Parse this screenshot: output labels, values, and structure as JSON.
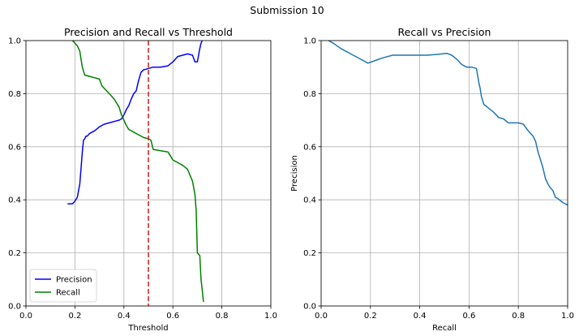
{
  "suptitle": "Submission 10",
  "chart_data": [
    {
      "type": "line",
      "title": "Precision and Recall vs Threshold",
      "xlabel": "Threshold",
      "ylabel": "",
      "xlim": [
        0.0,
        1.0
      ],
      "ylim": [
        0.0,
        1.0
      ],
      "xticks": [
        "0.0",
        "0.2",
        "0.4",
        "0.6",
        "0.8",
        "1.0"
      ],
      "yticks": [
        "0.0",
        "0.2",
        "0.4",
        "0.6",
        "0.8",
        "1.0"
      ],
      "grid": true,
      "legend": "lower-left",
      "threshold_line": {
        "x": 0.5,
        "color": "#d62728",
        "style": "dashed"
      },
      "series": [
        {
          "name": "Precision",
          "color": "#0000ff",
          "x": [
            0.17,
            0.19,
            0.2,
            0.21,
            0.22,
            0.225,
            0.23,
            0.235,
            0.24,
            0.245,
            0.25,
            0.26,
            0.28,
            0.3,
            0.32,
            0.34,
            0.36,
            0.38,
            0.39,
            0.4,
            0.41,
            0.42,
            0.43,
            0.44,
            0.45,
            0.46,
            0.47,
            0.48,
            0.49,
            0.5,
            0.52,
            0.55,
            0.58,
            0.6,
            0.62,
            0.64,
            0.66,
            0.68,
            0.69,
            0.7,
            0.71,
            0.715,
            0.72
          ],
          "y": [
            0.385,
            0.385,
            0.395,
            0.41,
            0.46,
            0.52,
            0.58,
            0.625,
            0.63,
            0.64,
            0.64,
            0.65,
            0.66,
            0.675,
            0.685,
            0.69,
            0.695,
            0.7,
            0.705,
            0.72,
            0.74,
            0.755,
            0.78,
            0.8,
            0.81,
            0.85,
            0.88,
            0.89,
            0.892,
            0.895,
            0.9,
            0.9,
            0.905,
            0.92,
            0.94,
            0.945,
            0.95,
            0.945,
            0.92,
            0.92,
            0.97,
            0.99,
            1.0
          ]
        },
        {
          "name": "Recall",
          "color": "#008000",
          "x": [
            0.19,
            0.2,
            0.21,
            0.22,
            0.23,
            0.24,
            0.26,
            0.28,
            0.3,
            0.31,
            0.32,
            0.34,
            0.36,
            0.38,
            0.39,
            0.4,
            0.41,
            0.42,
            0.44,
            0.46,
            0.48,
            0.5,
            0.51,
            0.52,
            0.55,
            0.58,
            0.59,
            0.6,
            0.62,
            0.64,
            0.66,
            0.68,
            0.69,
            0.695,
            0.7,
            0.705,
            0.71,
            0.715,
            0.72,
            0.725
          ],
          "y": [
            1.0,
            0.99,
            0.98,
            0.96,
            0.9,
            0.87,
            0.865,
            0.86,
            0.855,
            0.83,
            0.82,
            0.8,
            0.78,
            0.75,
            0.72,
            0.7,
            0.68,
            0.665,
            0.655,
            0.645,
            0.635,
            0.63,
            0.625,
            0.59,
            0.585,
            0.58,
            0.565,
            0.55,
            0.54,
            0.53,
            0.515,
            0.47,
            0.42,
            0.36,
            0.2,
            0.195,
            0.19,
            0.1,
            0.06,
            0.015
          ]
        }
      ]
    },
    {
      "type": "line",
      "title": "Recall vs Precision",
      "xlabel": "Recall",
      "ylabel": "Precision",
      "xlim": [
        0.0,
        1.0
      ],
      "ylim": [
        0.0,
        1.0
      ],
      "xticks": [
        "0.0",
        "0.2",
        "0.4",
        "0.6",
        "0.8",
        "1.0"
      ],
      "yticks": [
        "0.0",
        "0.2",
        "0.4",
        "0.6",
        "0.8",
        "1.0"
      ],
      "grid": true,
      "series": [
        {
          "color": "#1f77b4",
          "x": [
            0.03,
            0.05,
            0.08,
            0.12,
            0.16,
            0.19,
            0.22,
            0.25,
            0.29,
            0.33,
            0.38,
            0.43,
            0.47,
            0.51,
            0.53,
            0.55,
            0.57,
            0.59,
            0.61,
            0.63,
            0.64,
            0.645,
            0.65,
            0.66,
            0.68,
            0.7,
            0.72,
            0.74,
            0.76,
            0.78,
            0.8,
            0.82,
            0.84,
            0.86,
            0.87,
            0.88,
            0.89,
            0.9,
            0.91,
            0.92,
            0.93,
            0.94,
            0.95,
            0.96,
            0.98,
            1.0
          ],
          "y": [
            1.0,
            0.99,
            0.97,
            0.95,
            0.93,
            0.915,
            0.925,
            0.935,
            0.945,
            0.945,
            0.945,
            0.945,
            0.948,
            0.952,
            0.945,
            0.93,
            0.91,
            0.9,
            0.9,
            0.895,
            0.84,
            0.82,
            0.79,
            0.76,
            0.745,
            0.73,
            0.71,
            0.705,
            0.69,
            0.69,
            0.69,
            0.685,
            0.66,
            0.64,
            0.62,
            0.58,
            0.55,
            0.52,
            0.48,
            0.46,
            0.445,
            0.435,
            0.41,
            0.405,
            0.39,
            0.38
          ]
        }
      ]
    }
  ]
}
